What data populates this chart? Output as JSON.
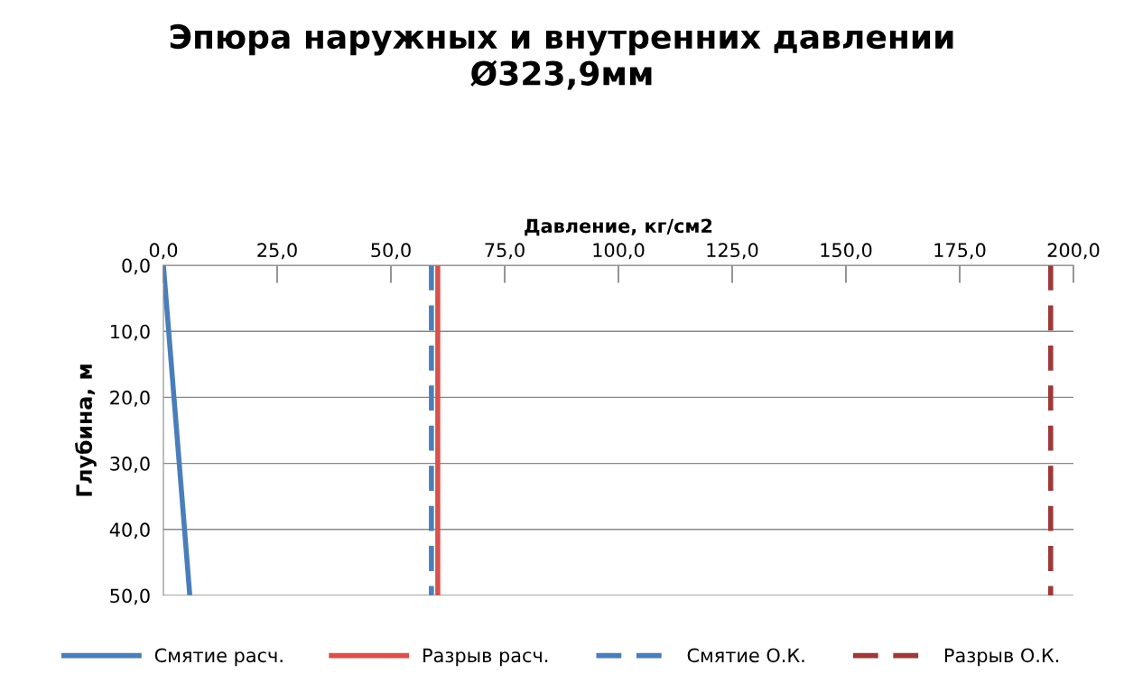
{
  "chart_data": {
    "type": "line",
    "title": "Эпюра наружных и внутренних давлении\nØ323,9мм",
    "xlabel": "Давление, кг/см2",
    "ylabel": "Глубина, м",
    "series": [
      {
        "name": "Смятие расч.",
        "color": "#4a7ebb",
        "line_style": "solid",
        "x": [
          0,
          5.8
        ],
        "values": [
          0,
          50
        ]
      },
      {
        "name": "Разрыв расч.",
        "color": "#d9504c",
        "line_style": "solid",
        "x": [
          60.3,
          60.3
        ],
        "values": [
          0,
          50
        ]
      },
      {
        "name": "Смятие О.К.",
        "color": "#4a7ebb",
        "line_style": "dashed",
        "x": [
          58.9,
          58.9
        ],
        "values": [
          0,
          50
        ]
      },
      {
        "name": "Разрыв О.К.",
        "color": "#9c3a38",
        "line_style": "dashed",
        "x": [
          195.0,
          195.0
        ],
        "values": [
          0,
          50
        ]
      }
    ],
    "xlim": [
      0,
      200
    ],
    "xticks": [
      {
        "value": 0,
        "label": "0,0"
      },
      {
        "value": 25,
        "label": "25,0"
      },
      {
        "value": 50,
        "label": "50,0"
      },
      {
        "value": 75,
        "label": "75,0"
      },
      {
        "value": 100,
        "label": "100,0"
      },
      {
        "value": 125,
        "label": "125,0"
      },
      {
        "value": 150,
        "label": "150,0"
      },
      {
        "value": 175,
        "label": "175,0"
      },
      {
        "value": 200,
        "label": "200,0"
      }
    ],
    "ylim": [
      50,
      0
    ],
    "yticks": [
      {
        "value": 0,
        "label": "0,0"
      },
      {
        "value": 10,
        "label": "10,0"
      },
      {
        "value": 20,
        "label": "20,0"
      },
      {
        "value": 30,
        "label": "30,0"
      },
      {
        "value": 40,
        "label": "40,0"
      },
      {
        "value": 50,
        "label": "50,0"
      }
    ],
    "grid": "y",
    "legend": "bottom"
  }
}
